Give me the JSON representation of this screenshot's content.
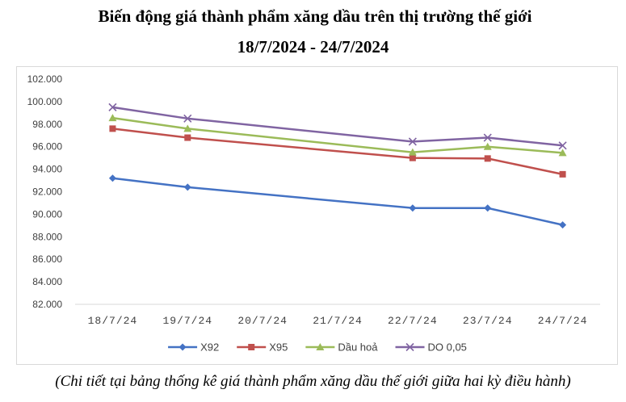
{
  "title_line1": "Biến động giá thành phẩm xăng dầu trên thị trường thế giới",
  "title_line2": "18/7/2024 - 24/7/2024",
  "caption": "(Chi tiết tại bảng thống kê giá thành phẩm xăng dầu thế giới giữa hai kỳ điều hành)",
  "chart_data": {
    "type": "line",
    "categories": [
      "18/7/24",
      "19/7/24",
      "20/7/24",
      "21/7/24",
      "22/7/24",
      "23/7/24",
      "24/7/24"
    ],
    "ylim": [
      82000,
      102000
    ],
    "yticks": [
      82000,
      84000,
      86000,
      88000,
      90000,
      92000,
      94000,
      96000,
      98000,
      100000,
      102000
    ],
    "ytick_labels": [
      "82.000",
      "84.000",
      "86.000",
      "88.000",
      "90.000",
      "92.000",
      "94.000",
      "96.000",
      "98.000",
      "100.000",
      "102.000"
    ],
    "grid": false,
    "legend_position": "bottom",
    "series": [
      {
        "name": "X92",
        "color": "#4472c4",
        "marker": "diamond",
        "values": [
          93200,
          92400,
          null,
          null,
          90550,
          90550,
          89050
        ]
      },
      {
        "name": "X95",
        "color": "#c0504d",
        "marker": "square",
        "values": [
          97600,
          96800,
          null,
          null,
          95000,
          94950,
          93550
        ]
      },
      {
        "name": "Dầu hoả",
        "color": "#9bbb59",
        "marker": "triangle",
        "values": [
          98550,
          97600,
          null,
          null,
          95500,
          96000,
          95450
        ]
      },
      {
        "name": "DO 0,05",
        "color": "#8064a2",
        "marker": "x",
        "values": [
          99500,
          98500,
          null,
          null,
          96450,
          96800,
          96100
        ]
      }
    ]
  }
}
